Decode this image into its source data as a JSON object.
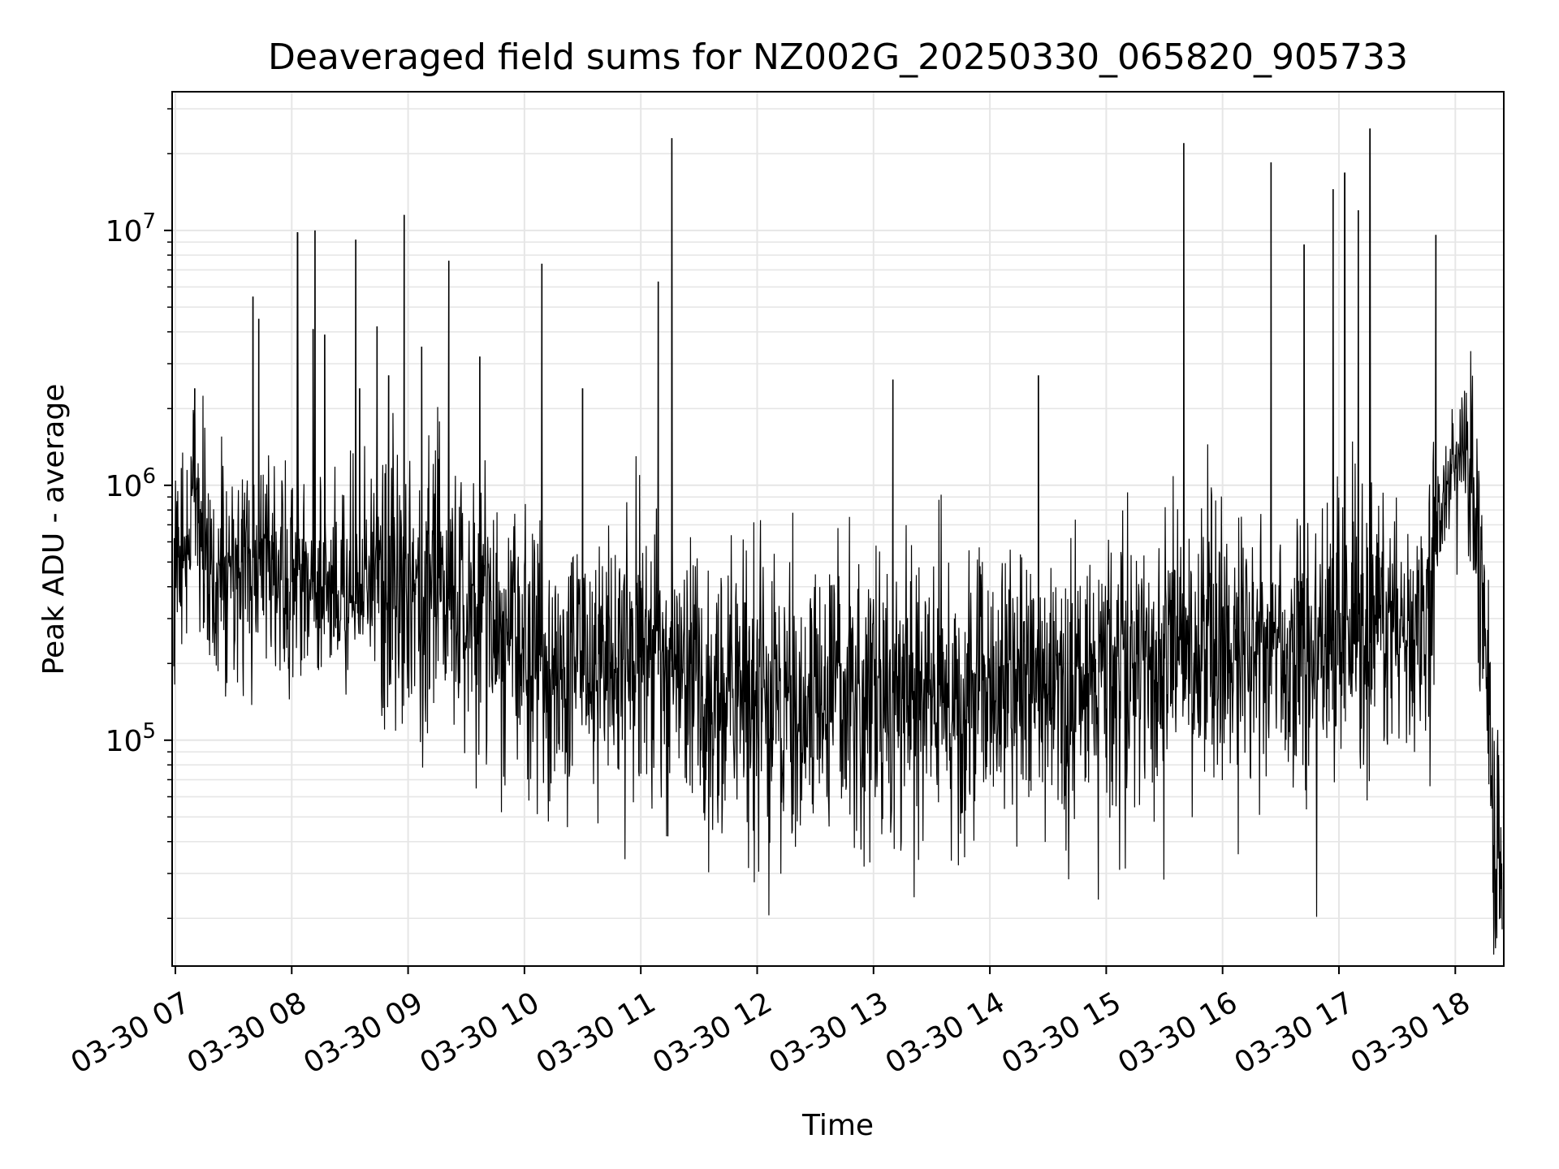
{
  "chart_data": {
    "type": "line",
    "title": "Deaveraged field sums for NZ002G_20250330_065820_905733",
    "xlabel": "Time",
    "ylabel": "Peak ADU - average",
    "yscale": "log",
    "ylim": [
      13000,
      35000000
    ],
    "xlim": [
      "03-30 06:58:20",
      "03-30 18:25"
    ],
    "grid": true,
    "line_color": "#000000",
    "grid_color": "#e6e6e6",
    "x_ticks": [
      {
        "value": "03-30 07:00",
        "label": "03-30 07"
      },
      {
        "value": "03-30 08:00",
        "label": "03-30 08"
      },
      {
        "value": "03-30 09:00",
        "label": "03-30 09"
      },
      {
        "value": "03-30 10:00",
        "label": "03-30 10"
      },
      {
        "value": "03-30 11:00",
        "label": "03-30 11"
      },
      {
        "value": "03-30 12:00",
        "label": "03-30 12"
      },
      {
        "value": "03-30 13:00",
        "label": "03-30 13"
      },
      {
        "value": "03-30 14:00",
        "label": "03-30 14"
      },
      {
        "value": "03-30 15:00",
        "label": "03-30 15"
      },
      {
        "value": "03-30 16:00",
        "label": "03-30 16"
      },
      {
        "value": "03-30 17:00",
        "label": "03-30 17"
      },
      {
        "value": "03-30 18:00",
        "label": "03-30 18"
      }
    ],
    "y_ticks": [
      {
        "value": 100000,
        "base": "10",
        "exp": "5"
      },
      {
        "value": 1000000,
        "base": "10",
        "exp": "6"
      },
      {
        "value": 10000000,
        "base": "10",
        "exp": "7"
      }
    ],
    "series": [
      {
        "x": [
          "03-30 06:58",
          "03-30 07:05",
          "03-30 07:10",
          "03-30 07:15",
          "03-30 07:20",
          "03-30 07:30",
          "03-30 07:40",
          "03-30 07:50",
          "03-30 08:00",
          "03-30 08:10",
          "03-30 08:20",
          "03-30 08:30",
          "03-30 08:40",
          "03-30 08:50",
          "03-30 09:00",
          "03-30 09:10",
          "03-30 09:20",
          "03-30 09:30",
          "03-30 09:40",
          "03-30 09:50",
          "03-30 10:00",
          "03-30 10:10",
          "03-30 10:20",
          "03-30 10:30",
          "03-30 10:40",
          "03-30 10:50",
          "03-30 11:00",
          "03-30 11:10",
          "03-30 11:20",
          "03-30 11:30",
          "03-30 11:40",
          "03-30 11:50",
          "03-30 12:00",
          "03-30 12:15",
          "03-30 12:30",
          "03-30 12:45",
          "03-30 13:00",
          "03-30 13:15",
          "03-30 13:30",
          "03-30 13:45",
          "03-30 14:00",
          "03-30 14:15",
          "03-30 14:30",
          "03-30 14:45",
          "03-30 15:00",
          "03-30 15:15",
          "03-30 15:30",
          "03-30 15:45",
          "03-30 16:00",
          "03-30 16:15",
          "03-30 16:30",
          "03-30 16:45",
          "03-30 17:00",
          "03-30 17:15",
          "03-30 17:30",
          "03-30 17:45",
          "03-30 17:55",
          "03-30 18:05",
          "03-30 18:10",
          "03-30 18:15",
          "03-30 18:20",
          "03-30 18:25"
        ],
        "y": [
          450000,
          550000,
          900000,
          600000,
          350000,
          480000,
          520000,
          500000,
          450000,
          420000,
          400000,
          380000,
          420000,
          440000,
          400000,
          380000,
          360000,
          340000,
          320000,
          280000,
          230000,
          210000,
          200000,
          200000,
          190000,
          180000,
          190000,
          180000,
          175000,
          170000,
          165000,
          160000,
          155000,
          150000,
          150000,
          145000,
          150000,
          155000,
          150000,
          150000,
          155000,
          160000,
          165000,
          170000,
          175000,
          200000,
          220000,
          230000,
          240000,
          230000,
          220000,
          230000,
          250000,
          240000,
          250000,
          260000,
          1100000,
          1500000,
          900000,
          400000,
          40000,
          45000
        ]
      }
    ],
    "spikes": [
      {
        "x": "03-30 07:10",
        "y": 2400000
      },
      {
        "x": "03-30 07:40",
        "y": 5500000
      },
      {
        "x": "03-30 07:43",
        "y": 4500000
      },
      {
        "x": "03-30 08:03",
        "y": 9800000
      },
      {
        "x": "03-30 08:11",
        "y": 4100000
      },
      {
        "x": "03-30 08:12",
        "y": 10000000
      },
      {
        "x": "03-30 08:17",
        "y": 3900000
      },
      {
        "x": "03-30 08:33",
        "y": 9200000
      },
      {
        "x": "03-30 08:35",
        "y": 2400000
      },
      {
        "x": "03-30 08:44",
        "y": 4200000
      },
      {
        "x": "03-30 08:50",
        "y": 2700000
      },
      {
        "x": "03-30 08:58",
        "y": 11500000
      },
      {
        "x": "03-30 09:07",
        "y": 3500000
      },
      {
        "x": "03-30 09:21",
        "y": 7600000
      },
      {
        "x": "03-30 09:37",
        "y": 3200000
      },
      {
        "x": "03-30 10:09",
        "y": 7400000
      },
      {
        "x": "03-30 10:30",
        "y": 2400000
      },
      {
        "x": "03-30 11:09",
        "y": 6300000
      },
      {
        "x": "03-30 11:16",
        "y": 23000000
      },
      {
        "x": "03-30 13:10",
        "y": 2600000
      },
      {
        "x": "03-30 14:25",
        "y": 2700000
      },
      {
        "x": "03-30 15:40",
        "y": 22000000
      },
      {
        "x": "03-30 16:25",
        "y": 18500000
      },
      {
        "x": "03-30 16:42",
        "y": 8800000
      },
      {
        "x": "03-30 16:57",
        "y": 14500000
      },
      {
        "x": "03-30 17:03",
        "y": 16800000
      },
      {
        "x": "03-30 17:10",
        "y": 12000000
      },
      {
        "x": "03-30 17:16",
        "y": 25000000
      },
      {
        "x": "03-30 17:50",
        "y": 9600000
      }
    ]
  }
}
